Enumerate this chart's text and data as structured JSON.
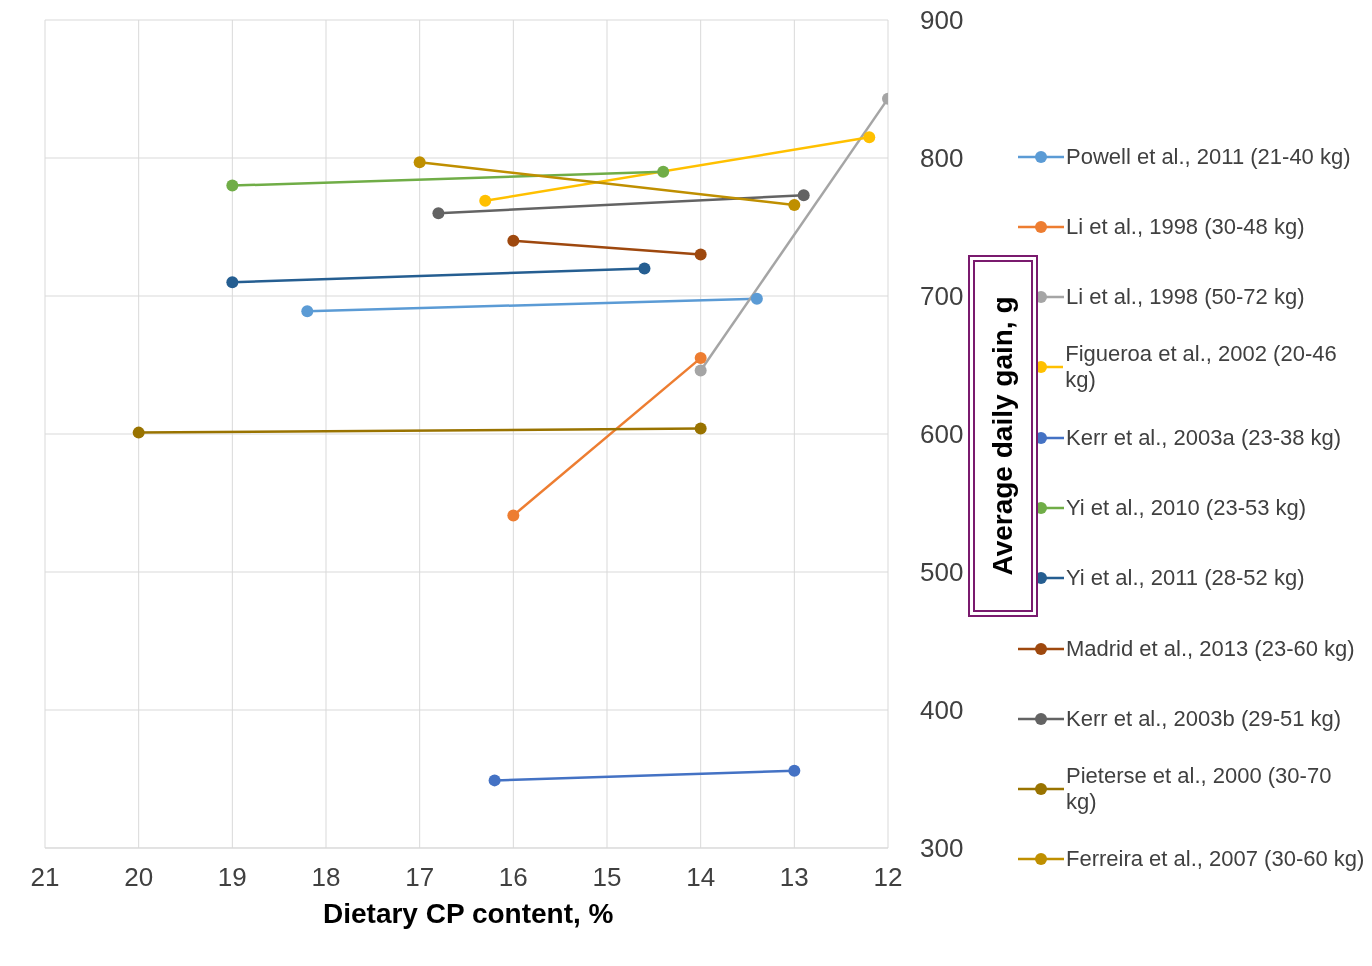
{
  "chart_data": {
    "type": "line",
    "xlabel": "Dietary CP content, %",
    "ylabel": "Average daily gain, g",
    "xlim": [
      21,
      12
    ],
    "xticks": [
      21,
      20,
      19,
      18,
      17,
      16,
      15,
      14,
      13,
      12
    ],
    "ylim": [
      300,
      900
    ],
    "yticks": [
      300,
      400,
      500,
      600,
      700,
      800,
      900
    ],
    "grid": true,
    "legend": "right",
    "marker": "circle",
    "line_style": "solid",
    "series": [
      {
        "name": "Powell et al., 2011 (21-40 kg)",
        "color": "#5b9bd5",
        "x": [
          18.2,
          13.4
        ],
        "values": [
          689,
          698
        ]
      },
      {
        "name": "Li et al., 1998 (30-48 kg)",
        "color": "#ed7d31",
        "x": [
          16,
          14
        ],
        "values": [
          541,
          655
        ]
      },
      {
        "name": "Li et al., 1998 (50-72 kg)",
        "color": "#a5a5a5",
        "x": [
          14,
          12
        ],
        "values": [
          646,
          843
        ]
      },
      {
        "name": "Figueroa et al., 2002 (20-46 kg)",
        "color": "#ffc000",
        "x": [
          16.3,
          12.2
        ],
        "values": [
          769,
          815
        ]
      },
      {
        "name": "Kerr et al., 2003a (23-38 kg)",
        "color": "#4472c4",
        "x": [
          16.2,
          13
        ],
        "values": [
          349,
          356
        ]
      },
      {
        "name": "Yi et al., 2010 (23-53 kg)",
        "color": "#70ad47",
        "x": [
          19,
          14.4
        ],
        "values": [
          780,
          790
        ]
      },
      {
        "name": "Yi et al., 2011 (28-52 kg)",
        "color": "#255e91",
        "x": [
          19,
          14.6
        ],
        "values": [
          710,
          720
        ]
      },
      {
        "name": "Madrid et al., 2013 (23-60 kg)",
        "color": "#9e480e",
        "x": [
          16,
          14
        ],
        "values": [
          740,
          730
        ]
      },
      {
        "name": "Kerr et al., 2003b (29-51 kg)",
        "color": "#636363",
        "x": [
          16.8,
          12.9
        ],
        "values": [
          760,
          773
        ]
      },
      {
        "name": "Pieterse et al., 2000 (30-70 kg)",
        "color": "#997300",
        "x": [
          20,
          14
        ],
        "values": [
          601,
          604
        ]
      },
      {
        "name": "Ferreira et al., 2007 (30-60 kg)",
        "color": "#bf8f00",
        "x": [
          17,
          13
        ],
        "values": [
          797,
          766
        ]
      }
    ]
  }
}
